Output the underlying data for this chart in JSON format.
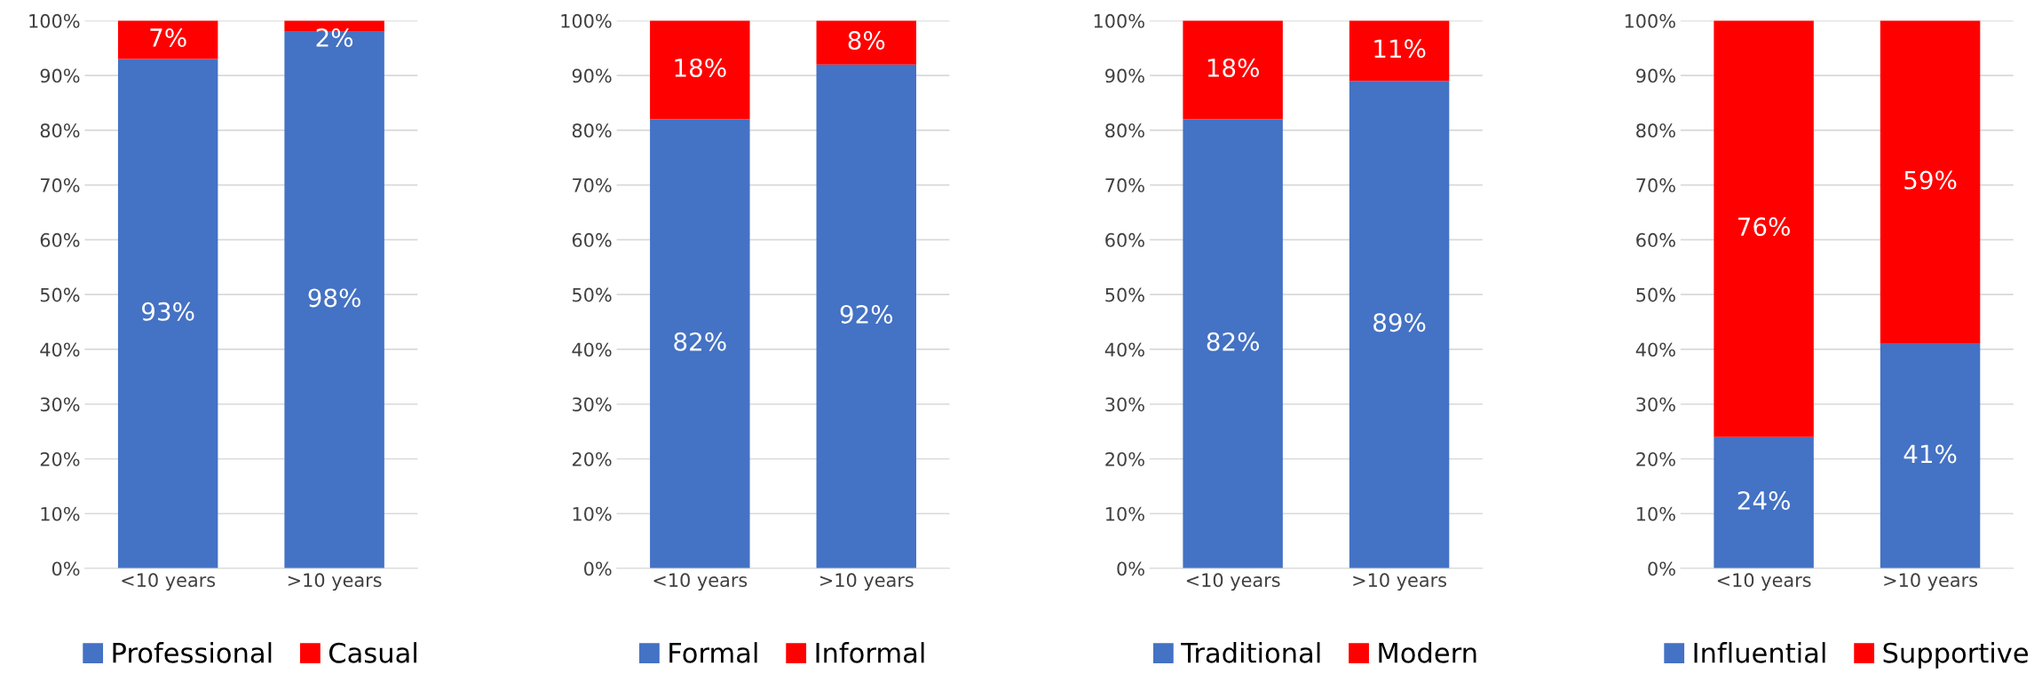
{
  "chart_data": [
    {
      "type": "bar",
      "stacked": true,
      "categories": [
        "<10 years",
        ">10 years"
      ],
      "ylim": [
        0,
        100
      ],
      "yticks": [
        {
          "value": 0,
          "label": "0%"
        },
        {
          "value": 10,
          "label": "10%"
        },
        {
          "value": 20,
          "label": "20%"
        },
        {
          "value": 30,
          "label": "30%"
        },
        {
          "value": 40,
          "label": "40%"
        },
        {
          "value": 50,
          "label": "50%"
        },
        {
          "value": 60,
          "label": "60%"
        },
        {
          "value": 70,
          "label": "70%"
        },
        {
          "value": 80,
          "label": "80%"
        },
        {
          "value": 90,
          "label": "90%"
        },
        {
          "value": 100,
          "label": "100%"
        }
      ],
      "grid": "y",
      "legend": "bottom",
      "series": [
        {
          "name": "Professional",
          "color": "#4472c4",
          "values": [
            93,
            98
          ],
          "value_labels": [
            "93%",
            "98%"
          ]
        },
        {
          "name": "Casual",
          "color": "#ff0000",
          "values": [
            7,
            2
          ],
          "value_labels": [
            "7%",
            "2%"
          ]
        }
      ]
    },
    {
      "type": "bar",
      "stacked": true,
      "categories": [
        "<10 years",
        ">10 years"
      ],
      "ylim": [
        0,
        100
      ],
      "yticks": [
        {
          "value": 0,
          "label": "0%"
        },
        {
          "value": 10,
          "label": "10%"
        },
        {
          "value": 20,
          "label": "20%"
        },
        {
          "value": 30,
          "label": "30%"
        },
        {
          "value": 40,
          "label": "40%"
        },
        {
          "value": 50,
          "label": "50%"
        },
        {
          "value": 60,
          "label": "60%"
        },
        {
          "value": 70,
          "label": "70%"
        },
        {
          "value": 80,
          "label": "80%"
        },
        {
          "value": 90,
          "label": "90%"
        },
        {
          "value": 100,
          "label": "100%"
        }
      ],
      "grid": "y",
      "legend": "bottom",
      "series": [
        {
          "name": "Formal",
          "color": "#4472c4",
          "values": [
            82,
            92
          ],
          "value_labels": [
            "82%",
            "92%"
          ]
        },
        {
          "name": "Informal",
          "color": "#ff0000",
          "values": [
            18,
            8
          ],
          "value_labels": [
            "18%",
            "8%"
          ]
        }
      ]
    },
    {
      "type": "bar",
      "stacked": true,
      "categories": [
        "<10 years",
        ">10 years"
      ],
      "ylim": [
        0,
        100
      ],
      "yticks": [
        {
          "value": 0,
          "label": "0%"
        },
        {
          "value": 10,
          "label": "10%"
        },
        {
          "value": 20,
          "label": "20%"
        },
        {
          "value": 30,
          "label": "30%"
        },
        {
          "value": 40,
          "label": "40%"
        },
        {
          "value": 50,
          "label": "50%"
        },
        {
          "value": 60,
          "label": "60%"
        },
        {
          "value": 70,
          "label": "70%"
        },
        {
          "value": 80,
          "label": "80%"
        },
        {
          "value": 90,
          "label": "90%"
        },
        {
          "value": 100,
          "label": "100%"
        }
      ],
      "grid": "y",
      "legend": "bottom",
      "series": [
        {
          "name": "Traditional",
          "color": "#4472c4",
          "values": [
            82,
            89
          ],
          "value_labels": [
            "82%",
            "89%"
          ]
        },
        {
          "name": "Modern",
          "color": "#ff0000",
          "values": [
            18,
            11
          ],
          "value_labels": [
            "18%",
            "11%"
          ]
        }
      ]
    },
    {
      "type": "bar",
      "stacked": true,
      "categories": [
        "<10 years",
        ">10 years"
      ],
      "ylim": [
        0,
        100
      ],
      "yticks": [
        {
          "value": 0,
          "label": "0%"
        },
        {
          "value": 10,
          "label": "10%"
        },
        {
          "value": 20,
          "label": "20%"
        },
        {
          "value": 30,
          "label": "30%"
        },
        {
          "value": 40,
          "label": "40%"
        },
        {
          "value": 50,
          "label": "50%"
        },
        {
          "value": 60,
          "label": "60%"
        },
        {
          "value": 70,
          "label": "70%"
        },
        {
          "value": 80,
          "label": "80%"
        },
        {
          "value": 90,
          "label": "90%"
        },
        {
          "value": 100,
          "label": "100%"
        }
      ],
      "grid": "y",
      "legend": "bottom",
      "series": [
        {
          "name": "Influential",
          "color": "#4472c4",
          "values": [
            24,
            41
          ],
          "value_labels": [
            "24%",
            "41%"
          ]
        },
        {
          "name": "Supportive",
          "color": "#ff0000",
          "values": [
            76,
            59
          ],
          "value_labels": [
            "76%",
            "59%"
          ]
        }
      ]
    }
  ]
}
